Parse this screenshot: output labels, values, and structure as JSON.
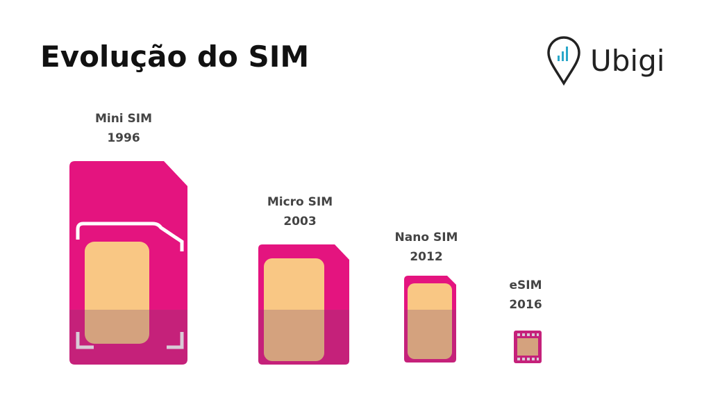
{
  "header": {
    "title": "Evolução do SIM",
    "logo": "Ubigi"
  },
  "items": [
    {
      "name": "Mini SIM",
      "year": "1996"
    },
    {
      "name": "Micro SIM",
      "year": "2003"
    },
    {
      "name": "Nano SIM",
      "year": "2012"
    },
    {
      "name": "eSIM",
      "year": "2016"
    }
  ]
}
